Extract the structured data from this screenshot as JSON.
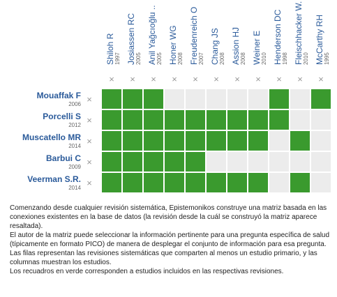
{
  "columns": [
    {
      "name": "Shiloh R",
      "year": "1997"
    },
    {
      "name": "Josiassen RC",
      "year": "2005"
    },
    {
      "name": "Anil Yağcıoğlu ..",
      "year": "2005"
    },
    {
      "name": "Honer WG",
      "year": "2008"
    },
    {
      "name": "Freudenreich O",
      "year": "2007"
    },
    {
      "name": "Chang JS",
      "year": "2008"
    },
    {
      "name": "Assion HJ",
      "year": "2008"
    },
    {
      "name": "Weiner E",
      "year": "2010"
    },
    {
      "name": "Henderson DC",
      "year": "1998"
    },
    {
      "name": "Fleischhacker W.",
      "year": "2010"
    },
    {
      "name": "McCarthy RH",
      "year": "1995"
    }
  ],
  "close_mark": "×",
  "rows": [
    {
      "name": "Mouaffak F",
      "year": "2006",
      "cells": [
        true,
        true,
        true,
        false,
        false,
        false,
        false,
        false,
        true,
        false,
        true
      ]
    },
    {
      "name": "Porcelli S",
      "year": "2012",
      "cells": [
        true,
        true,
        true,
        true,
        true,
        true,
        true,
        true,
        true,
        false,
        false
      ]
    },
    {
      "name": "Muscatello MR",
      "year": "2014",
      "cells": [
        true,
        true,
        true,
        true,
        true,
        true,
        true,
        true,
        false,
        true,
        false
      ]
    },
    {
      "name": "Barbui C",
      "year": "2009",
      "cells": [
        true,
        true,
        true,
        true,
        true,
        false,
        false,
        false,
        false,
        false,
        false
      ]
    },
    {
      "name": "Veerman S.R.",
      "year": "2014",
      "cells": [
        true,
        true,
        true,
        true,
        true,
        true,
        true,
        true,
        false,
        true,
        false
      ]
    }
  ],
  "colors": {
    "included": "#3a9a2e",
    "empty": "#ececec"
  },
  "notes": [
    "Comenzando desde cualquier revisión sistemática, Epistemonikos construye una matriz basada en las conexiones existentes en la base de datos (la revisión desde la cuál se construyó la matriz aparece resaltada).",
    "El autor de la matriz puede seleccionar la información pertinente para una pregunta específica de salud (típicamente en formato PICO) de manera de desplegar el conjunto de información para esa pregunta.",
    "Las filas representan las revisiones sistemáticas que comparten al menos un estudio primario, y las columnas muestran los estudios.",
    "Los recuadros en verde corresponden a estudios incluidos en las respectivas revisiones."
  ]
}
